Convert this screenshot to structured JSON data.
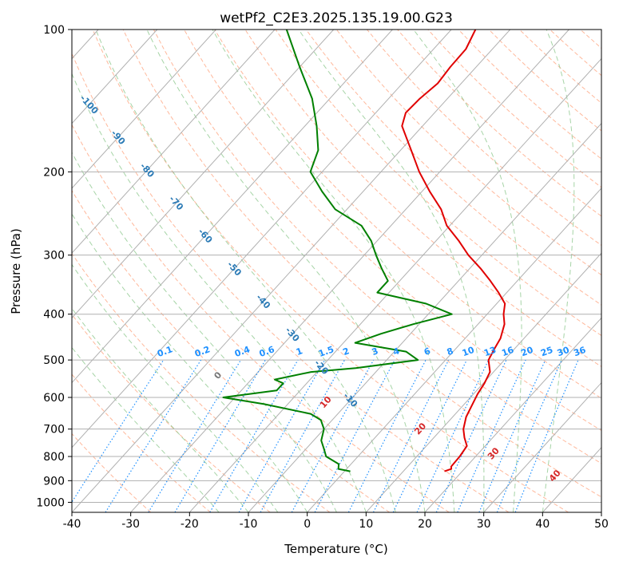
{
  "chart_data": {
    "type": "line",
    "chart_kind": "skew-t log-p diagram",
    "title": "wetPf2_C2E3.2025.135.19.00.G23",
    "xlabel": "Temperature (°C)",
    "ylabel": "Pressure (hPa)",
    "xlim": [
      -40,
      50
    ],
    "ylim": [
      1050,
      100
    ],
    "y_scale": "log",
    "grid": true,
    "x_ticks": [
      "-40",
      "-30",
      "-20",
      "-10",
      "0",
      "10",
      "20",
      "30",
      "40",
      "50"
    ],
    "y_ticks": [
      "100",
      "200",
      "300",
      "400",
      "500",
      "600",
      "700",
      "800",
      "900",
      "1000"
    ],
    "isotherm_labels": [
      "-100",
      "-90",
      "-80",
      "-70",
      "-60",
      "-50",
      "-40",
      "-30",
      "-20",
      "-10"
    ],
    "mixing_ratio_labels": [
      "0.1",
      "0.2",
      "0.4",
      "0.6",
      "1",
      "1.5",
      "2",
      "3",
      "4",
      "6",
      "8",
      "10",
      "13",
      "16",
      "20",
      "25",
      "30",
      "36"
    ],
    "moist_adiabat_labels": [
      "0",
      "10",
      "20",
      "30",
      "40"
    ],
    "colors": {
      "temperature": "#e00000",
      "dewpoint": "#008000",
      "isotherm_label": "#2c7bb6",
      "mixing_ratio": "#1e90ff",
      "moist_label_red": "#d62728",
      "moist_label_gray": "#777777",
      "dry_adiabat": "#ffa07a",
      "moist_adiabat": "#90c990",
      "grid": "#b0b0b0"
    },
    "series": [
      {
        "key": "temperature",
        "p": [
          860,
          850,
          840,
          800,
          760,
          730,
          700,
          660,
          620,
          590,
          560,
          530,
          500,
          470,
          450,
          420,
          400,
          380,
          360,
          340,
          320,
          300,
          280,
          260,
          240,
          220,
          200,
          180,
          160,
          150,
          140,
          130,
          120,
          110,
          100
        ],
        "t": [
          17.0,
          17.8,
          17.4,
          17.3,
          16.9,
          15.2,
          13.7,
          12.3,
          11.4,
          10.7,
          10.2,
          9.4,
          7.3,
          6.5,
          6.0,
          4.5,
          2.8,
          1.4,
          -1.4,
          -4.6,
          -8.2,
          -12.3,
          -16.1,
          -20.5,
          -24.0,
          -28.7,
          -33.5,
          -38.2,
          -43.5,
          -44.9,
          -44.7,
          -44.0,
          -44.4,
          -44.5,
          -45.9
        ]
      },
      {
        "key": "dewpoint",
        "p": [
          860,
          850,
          830,
          800,
          770,
          740,
          700,
          670,
          650,
          620,
          600,
          580,
          560,
          550,
          530,
          520,
          500,
          480,
          460,
          440,
          420,
          400,
          380,
          360,
          340,
          320,
          300,
          280,
          260,
          240,
          220,
          200,
          180,
          160,
          140,
          120,
          100
        ],
        "t": [
          1.0,
          -1.4,
          -2.1,
          -5.4,
          -7.0,
          -8.7,
          -10.0,
          -11.9,
          -14.6,
          -24.0,
          -32.0,
          -24.0,
          -24.0,
          -26.0,
          -21.0,
          -14.0,
          -4.7,
          -8.0,
          -18.0,
          -15.0,
          -11.0,
          -6.0,
          -12.0,
          -22.0,
          -22.0,
          -25.0,
          -28.0,
          -31.0,
          -35.0,
          -42.0,
          -47.0,
          -52.0,
          -54.0,
          -58.0,
          -63.0,
          -70.0,
          -78.0
        ]
      }
    ]
  }
}
